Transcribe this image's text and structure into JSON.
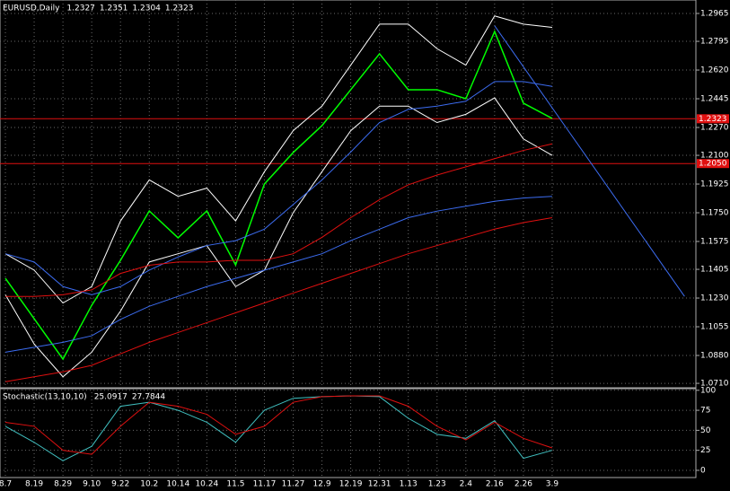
{
  "chart_data": [
    {
      "type": "line",
      "title": "EURUSD,Daily",
      "ohlc": [
        1.2327,
        1.2351,
        1.2304,
        1.2323
      ],
      "categories": [
        "8.7",
        "8.19",
        "8.29",
        "9.10",
        "9.22",
        "10.2",
        "10.14",
        "10.24",
        "11.5",
        "11.17",
        "11.27",
        "12.9",
        "12.19",
        "12.31",
        "1.13",
        "1.23",
        "2.4",
        "2.16",
        "2.26",
        "3.9"
      ],
      "series": [
        {
          "color": "#00ff00",
          "values": [
            1.135,
            1.1104,
            1.0858,
            1.1186,
            1.146,
            1.1761,
            1.1597,
            1.1761,
            1.1432,
            1.1925,
            1.2117,
            1.2281,
            1.25,
            1.2719,
            1.25,
            1.25,
            1.2445,
            1.2855,
            1.2418,
            1.2325
          ]
        },
        {
          "color": "#ffffff",
          "values": [
            1.15,
            1.14,
            1.12,
            1.13,
            1.17,
            1.195,
            1.185,
            1.19,
            1.17,
            1.2,
            1.225,
            1.24,
            1.265,
            1.29,
            1.29,
            1.275,
            1.265,
            1.295,
            1.29,
            1.288
          ]
        },
        {
          "color": "#ffffff",
          "values": [
            1.125,
            1.095,
            1.075,
            1.09,
            1.115,
            1.145,
            1.15,
            1.155,
            1.13,
            1.14,
            1.175,
            1.2,
            1.225,
            1.24,
            1.24,
            1.23,
            1.235,
            1.245,
            1.22,
            1.21
          ]
        },
        {
          "color": "#3c6cf0",
          "values": [
            1.15,
            1.145,
            1.13,
            1.125,
            1.13,
            1.14,
            1.148,
            1.155,
            1.158,
            1.165,
            1.18,
            1.195,
            1.212,
            1.23,
            1.238,
            1.24,
            1.243,
            1.255,
            1.255,
            1.252
          ]
        },
        {
          "color": "#e01010",
          "values": [
            1.124,
            1.124,
            1.125,
            1.128,
            1.138,
            1.143,
            1.145,
            1.145,
            1.146,
            1.146,
            1.15,
            1.16,
            1.172,
            1.183,
            1.192,
            1.198,
            1.203,
            1.208,
            1.213,
            1.217
          ]
        },
        {
          "color": "#3c6cf0",
          "values": [
            1.09,
            1.093,
            1.096,
            1.1,
            1.11,
            1.118,
            1.124,
            1.13,
            1.135,
            1.14,
            1.145,
            1.15,
            1.158,
            1.165,
            1.172,
            1.176,
            1.179,
            1.182,
            1.184,
            1.185
          ]
        },
        {
          "color": "#e01010",
          "values": [
            1.072,
            1.075,
            1.078,
            1.082,
            1.089,
            1.096,
            1.102,
            1.108,
            1.114,
            1.12,
            1.126,
            1.132,
            1.138,
            1.144,
            1.15,
            1.155,
            1.16,
            1.165,
            1.169,
            1.172
          ]
        }
      ],
      "hlines": [
        {
          "value": 1.2323,
          "label": "1.2323",
          "color": "#e01010"
        },
        {
          "value": 1.205,
          "label": "1.2050",
          "color": "#e01010"
        }
      ],
      "trendline": {
        "color": "#3c6cf0",
        "start": [
          17,
          1.289
        ],
        "end": [
          23.6,
          1.124
        ]
      },
      "ylim": [
        1.0683,
        1.3047
      ],
      "yticks": [
        1.2965,
        1.2795,
        {
          "value": 1.262,
          "label": "1.2620"
        },
        1.2445,
        {
          "value": 1.227,
          "label": "1.2270"
        },
        {
          "value": 1.21,
          "label": "1.2100"
        },
        1.1925,
        {
          "value": 1.175,
          "label": "1.1750"
        },
        1.1575,
        1.1405,
        {
          "value": 1.123,
          "label": "1.1230"
        },
        1.1055,
        {
          "value": 1.088,
          "label": "1.0880"
        },
        {
          "value": 1.071,
          "label": "1.0710"
        }
      ],
      "grid": true
    },
    {
      "type": "line",
      "title": "Stochastic(13,10,10)",
      "last": [
        25.0917,
        27.7844
      ],
      "series": [
        {
          "color": "#40c0c0",
          "values": [
            55,
            35,
            12,
            30,
            80,
            85,
            75,
            60,
            35,
            75,
            90,
            92,
            93,
            92,
            65,
            45,
            40,
            62,
            15,
            25
          ]
        },
        {
          "color": "#e01010",
          "values": [
            60,
            55,
            25,
            20,
            55,
            85,
            80,
            70,
            45,
            55,
            85,
            92,
            93,
            93,
            80,
            55,
            38,
            60,
            40,
            28
          ]
        }
      ],
      "ylim": [
        -9,
        102
      ],
      "yticks": [
        100,
        75,
        50,
        25,
        0
      ],
      "grid": true
    }
  ]
}
